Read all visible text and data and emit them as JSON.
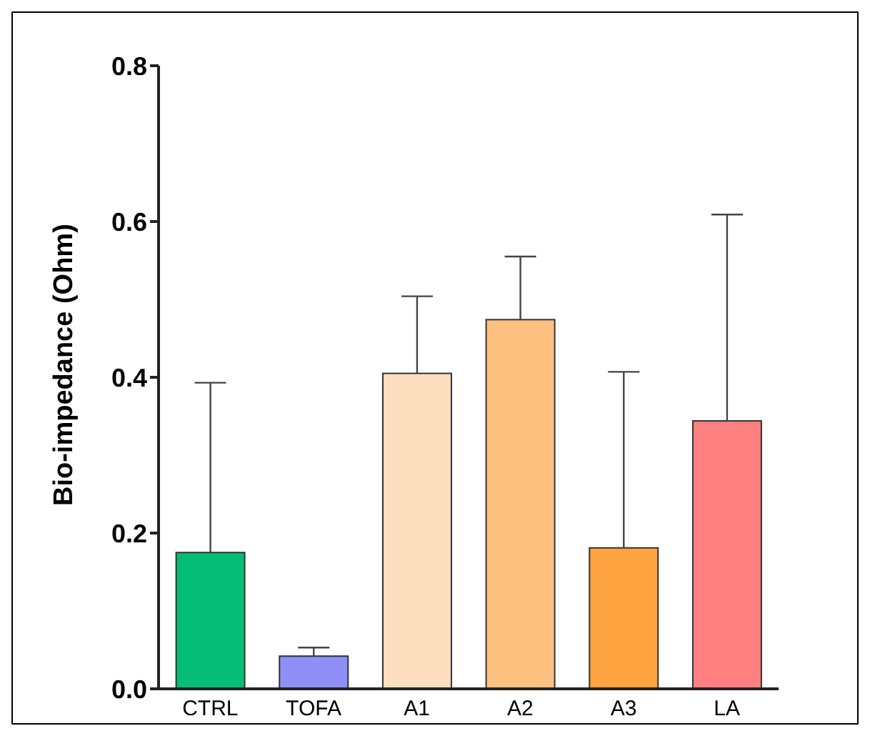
{
  "chart_data": {
    "type": "bar",
    "ylabel": "Bio-impedance (Ohm)",
    "categories": [
      "CTRL",
      "TOFA",
      "A1",
      "A2",
      "A3",
      "LA"
    ],
    "values": [
      0.175,
      0.042,
      0.405,
      0.474,
      0.181,
      0.344
    ],
    "colors": [
      "#05bd77",
      "#8f8ff8",
      "#fddfbf",
      "#fec07f",
      "#fda33f",
      "#fe7f7f"
    ],
    "errors": [
      [
        0.175,
        0.393
      ],
      [
        0.042,
        0.053
      ],
      [
        0.405,
        0.504
      ],
      [
        0.474,
        0.555
      ],
      [
        0.181,
        0.407
      ],
      [
        0.344,
        0.609
      ]
    ],
    "ylim": [
      0,
      0.8
    ],
    "yticks": [
      {
        "value": 0,
        "label": "0.0"
      },
      0.2,
      0.4,
      0.6,
      0.8
    ],
    "grid": false,
    "legend": false
  }
}
